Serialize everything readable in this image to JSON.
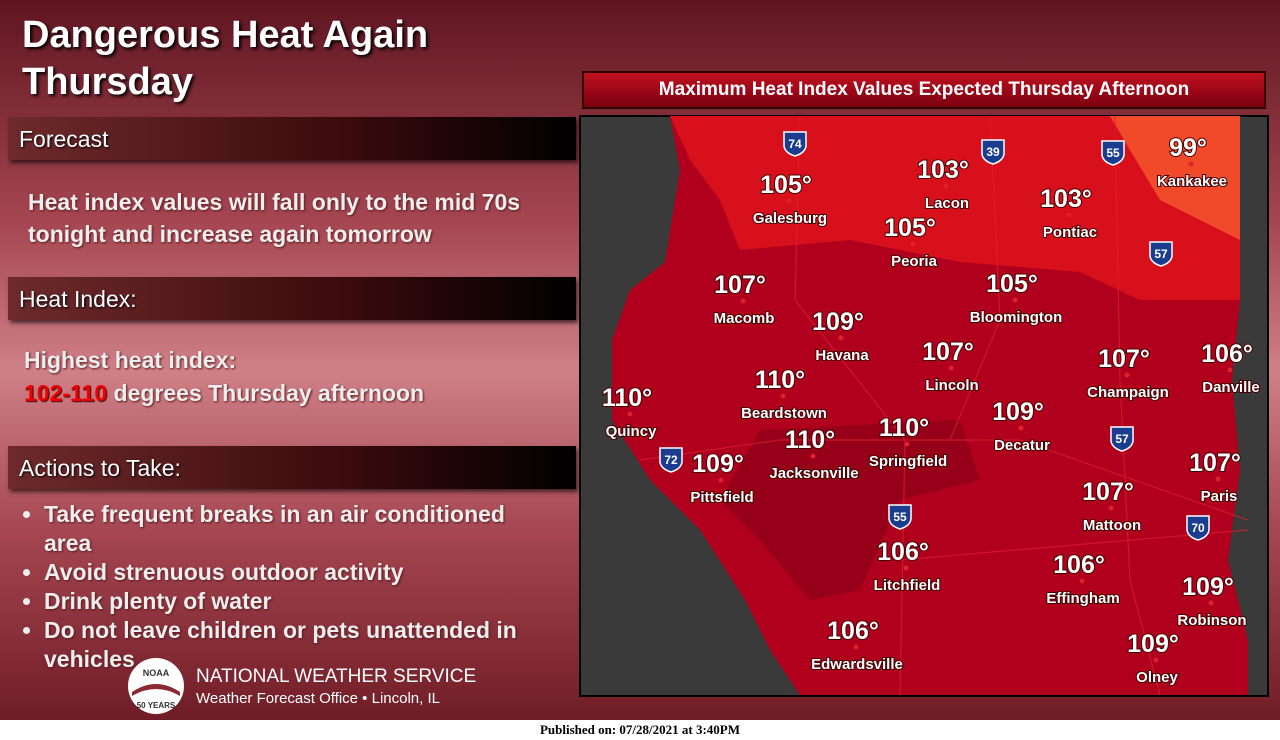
{
  "header": {
    "title": "Dangerous Heat Again Thursday"
  },
  "sections": [
    {
      "heading": "Forecast",
      "body": "Heat index values will fall only to the mid 70s tonight and increase again tomorrow"
    },
    {
      "heading": "Heat Index:",
      "lead": "Highest heat index:",
      "highlight": "102-110",
      "rest": "degrees Thursday afternoon"
    },
    {
      "heading": "Actions to Take:",
      "items": [
        "Take frequent breaks in an air conditioned area",
        "Avoid strenuous outdoor activity",
        "Drink plenty of water",
        "Do not leave children or pets unattended in vehicles"
      ]
    }
  ],
  "footer": {
    "logo": "NOAA",
    "anniversary": "50 YEARS",
    "org": "NATIONAL WEATHER SERVICE",
    "office": "Weather Forecast Office • Lincoln, IL",
    "published": "Published on: 07/28/2021 at 3:40PM"
  },
  "map": {
    "title": "Maximum Heat Index Values Expected Thursday Afternoon",
    "cities": [
      {
        "name": "Galesburg",
        "value": "105°"
      },
      {
        "name": "Lacon",
        "value": "103°"
      },
      {
        "name": "Peoria",
        "value": "105°"
      },
      {
        "name": "Kankakee",
        "value": "99°"
      },
      {
        "name": "Pontiac",
        "value": "103°"
      },
      {
        "name": "Macomb",
        "value": "107°"
      },
      {
        "name": "Havana",
        "value": "109°"
      },
      {
        "name": "Bloomington",
        "value": "105°"
      },
      {
        "name": "Lincoln",
        "value": "107°"
      },
      {
        "name": "Champaign",
        "value": "107°"
      },
      {
        "name": "Danville",
        "value": "106°"
      },
      {
        "name": "Quincy",
        "value": "110°"
      },
      {
        "name": "Beardstown",
        "value": "110°"
      },
      {
        "name": "Jacksonville",
        "value": "110°"
      },
      {
        "name": "Springfield",
        "value": "110°"
      },
      {
        "name": "Decatur",
        "value": "109°"
      },
      {
        "name": "Pittsfield",
        "value": "109°"
      },
      {
        "name": "Paris",
        "value": "107°"
      },
      {
        "name": "Mattoon",
        "value": "107°"
      },
      {
        "name": "Litchfield",
        "value": "106°"
      },
      {
        "name": "Effingham",
        "value": "106°"
      },
      {
        "name": "Robinson",
        "value": "109°"
      },
      {
        "name": "Edwardsville",
        "value": "106°"
      },
      {
        "name": "Olney",
        "value": "109°"
      }
    ],
    "interstates": [
      "74",
      "39",
      "55",
      "57",
      "72",
      "57",
      "55",
      "70"
    ]
  }
}
